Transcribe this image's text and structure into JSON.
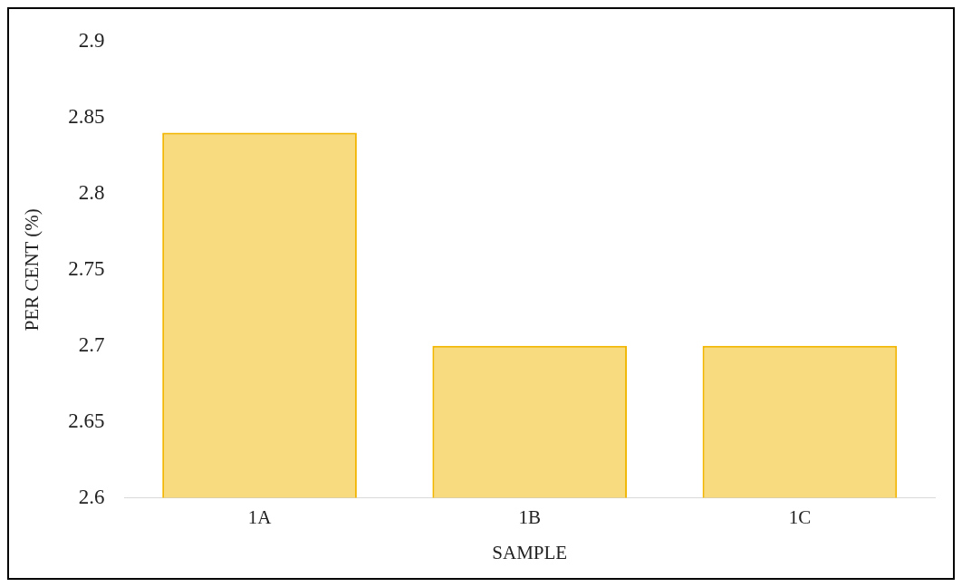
{
  "chart_data": {
    "type": "bar",
    "xlabel": "SAMPLE",
    "ylabel": "PER CENT (%)",
    "categories": [
      "1A",
      "1B",
      "1C"
    ],
    "values": [
      2.84,
      2.7,
      2.7
    ],
    "color": "#f2b600",
    "ylim": [
      2.6,
      2.9
    ],
    "yticks": [
      2.6,
      2.65,
      2.7,
      2.75,
      2.8,
      2.85,
      2.9
    ],
    "grid": false,
    "legend": false
  }
}
